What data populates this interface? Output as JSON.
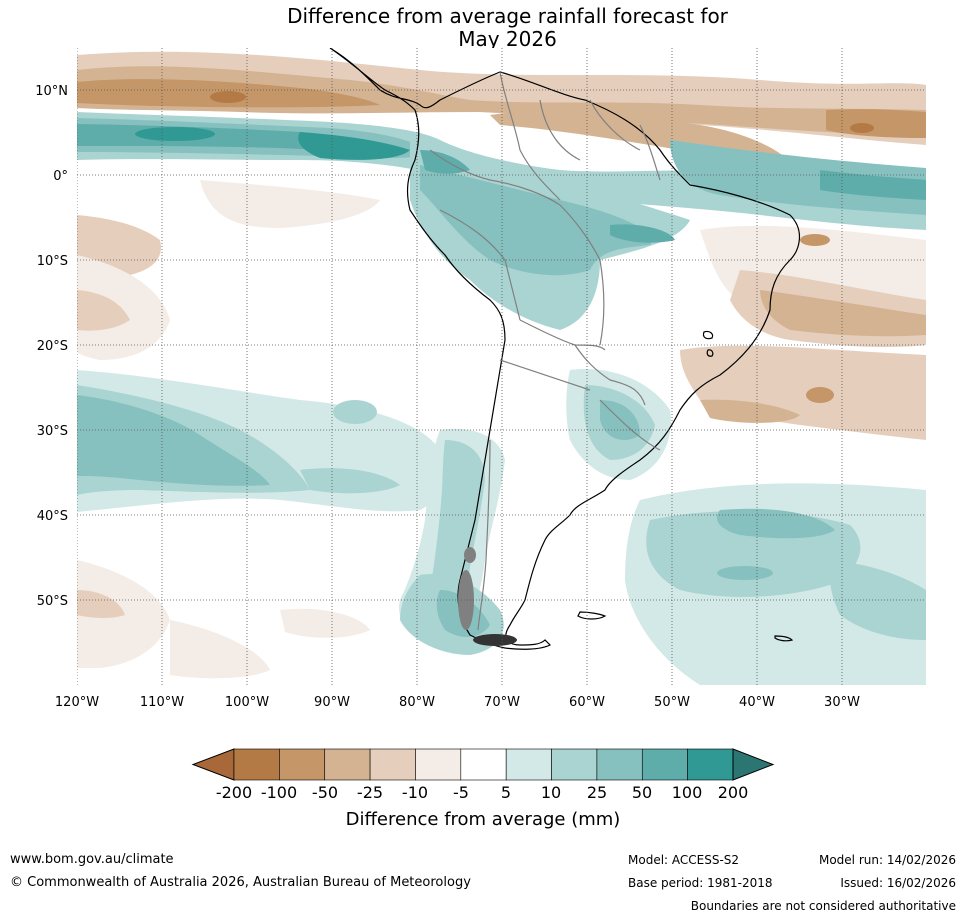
{
  "title": {
    "line1": "Difference from average rainfall forecast for",
    "line2": "May 2026"
  },
  "map": {
    "latitude_labels": [
      "10°N",
      "0°",
      "10°S",
      "20°S",
      "30°S",
      "40°S",
      "50°S"
    ],
    "longitude_labels": [
      "120°W",
      "110°W",
      "100°W",
      "90°W",
      "80°W",
      "70°W",
      "60°W",
      "50°W",
      "40°W",
      "30°W"
    ]
  },
  "legend": {
    "title": "Difference from average (mm)",
    "ticks": [
      "-200",
      "-100",
      "-50",
      "-25",
      "-10",
      "-5",
      "5",
      "10",
      "25",
      "50",
      "100",
      "200"
    ],
    "colors": [
      "#a8683a",
      "#b37a45",
      "#c49668",
      "#d4b392",
      "#e5cfbc",
      "#f4ece6",
      "#ffffff",
      "#d3e9e7",
      "#aad4d2",
      "#86c1bf",
      "#5eadab",
      "#319994",
      "#2b7572"
    ]
  },
  "footer": {
    "website": "www.bom.gov.au/climate",
    "copyright": "© Commonwealth of Australia 2026, Australian Bureau of Meteorology",
    "model": "Model: ACCESS-S2",
    "base_period": "Base period: 1981-2018",
    "model_run": "Model run: 14/02/2026",
    "issued": "Issued: 16/02/2026",
    "disclaimer": "Boundaries are not considered authoritative"
  }
}
